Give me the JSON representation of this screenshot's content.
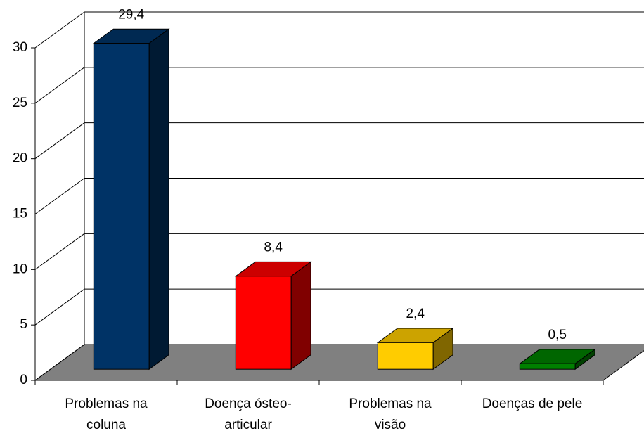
{
  "chart_data": {
    "type": "bar3d",
    "categories": [
      [
        "Problemas na",
        "coluna"
      ],
      [
        "Doença ósteo-",
        "articular"
      ],
      [
        "Problemas na",
        "visão"
      ],
      [
        "Doenças de pele"
      ]
    ],
    "values": [
      29.4,
      8.4,
      2.4,
      0.5
    ],
    "value_labels": [
      "29,4",
      "8,4",
      "2,4",
      "0,5"
    ],
    "colors": [
      "#003366",
      "#ff0000",
      "#ffcc00",
      "#008000"
    ],
    "ylim": [
      0,
      30
    ],
    "yticks": [
      0,
      5,
      10,
      15,
      20,
      25,
      30
    ],
    "grid": true
  }
}
